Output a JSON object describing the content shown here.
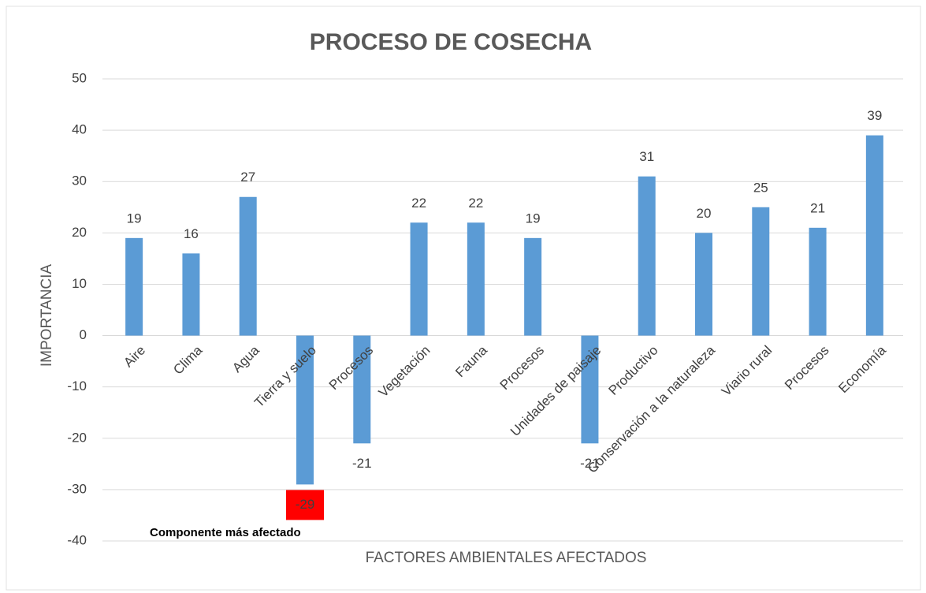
{
  "chart_data": {
    "type": "bar",
    "title": "PROCESO DE COSECHA",
    "x_label": "FACTORES AMBIENTALES AFECTADOS",
    "y_label": "IMPORTANCIA",
    "annotation": "Componente más afectado",
    "categories": [
      "Aire",
      "Clima",
      "Agua",
      "Tierra y suelo",
      "Procesos",
      "Vegetación",
      "Fauna",
      "Procesos",
      "Unidades de paisaje",
      "Productivo",
      "Conservación a la naturaleza",
      "Viario rural",
      "Procesos",
      "Economía"
    ],
    "values": [
      19,
      16,
      27,
      -29,
      -21,
      22,
      22,
      19,
      -21,
      31,
      20,
      25,
      21,
      39
    ],
    "color": "#5b9bd5",
    "ylim": [
      -40,
      50
    ],
    "yticks": [
      -40,
      -30,
      -20,
      -10,
      0,
      10,
      20,
      30,
      40,
      50
    ],
    "grid": true
  }
}
